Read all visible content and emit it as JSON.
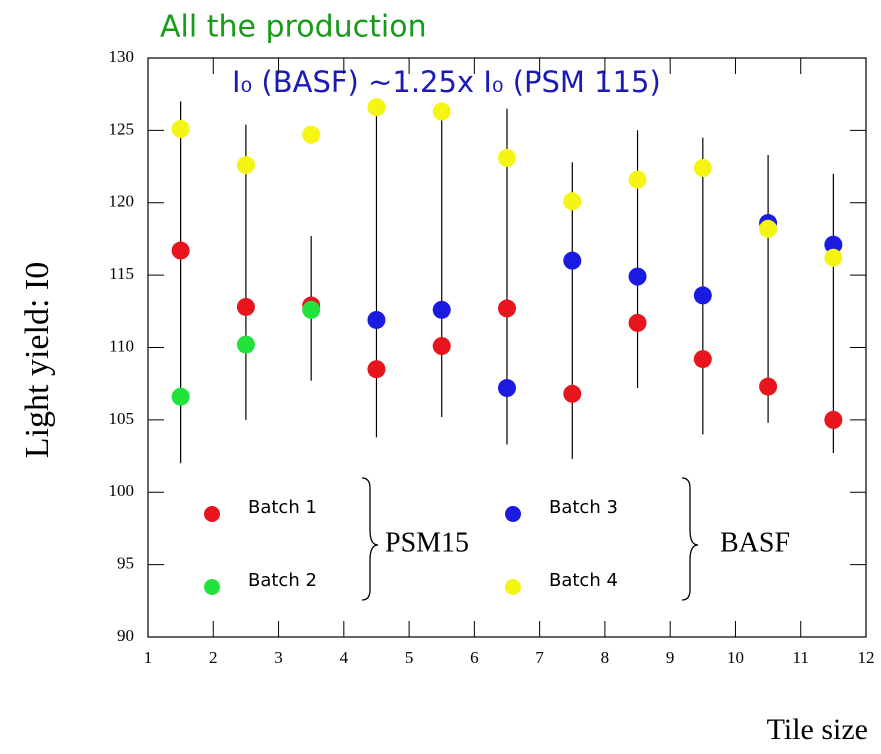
{
  "chart_data": {
    "type": "scatter",
    "title": "All the production",
    "annotation": "I₀ (BASF) ~1.25x I₀ (PSM 115)",
    "x_label": "Tile size",
    "y_label": "Light yield: I0",
    "xlim": [
      1,
      12
    ],
    "ylim": [
      90,
      130
    ],
    "xticks": [
      1,
      2,
      3,
      4,
      5,
      6,
      7,
      8,
      9,
      10,
      11,
      12
    ],
    "yticks": [
      90,
      95,
      100,
      105,
      110,
      115,
      120,
      125,
      130
    ],
    "legend_groups": [
      "PSM15",
      "BASF"
    ],
    "series": [
      {
        "name": "Batch 1",
        "color": "#e8141e",
        "x": [
          1.5,
          2.5,
          3.5,
          4.5,
          5.5,
          6.5,
          7.5,
          8.5,
          9.5,
          10.5,
          11.5
        ],
        "values": [
          116.7,
          112.8,
          112.9,
          108.5,
          110.1,
          112.7,
          106.8,
          111.7,
          109.2,
          107.3,
          105.0
        ]
      },
      {
        "name": "Batch 2",
        "color": "#22e33c",
        "x": [
          1.5,
          2.5,
          3.5
        ],
        "values": [
          106.6,
          110.2,
          112.6
        ]
      },
      {
        "name": "Batch 3",
        "color": "#1a1ae0",
        "x": [
          4.5,
          5.5,
          6.5,
          7.5,
          8.5,
          9.5,
          10.5,
          11.5
        ],
        "values": [
          111.9,
          112.6,
          107.2,
          116.0,
          114.9,
          113.6,
          118.6,
          117.1
        ]
      },
      {
        "name": "Batch 4",
        "color": "#f5f514",
        "x": [
          1.5,
          2.5,
          3.5,
          4.5,
          5.5,
          6.5,
          7.5,
          8.5,
          9.5,
          10.5,
          11.5
        ],
        "values": [
          125.1,
          122.6,
          124.7,
          126.6,
          126.3,
          123.1,
          120.1,
          121.6,
          122.4,
          118.2,
          116.2
        ]
      }
    ],
    "error_bars": {
      "x": [
        1.5,
        2.5,
        3.5,
        4.5,
        5.5,
        6.5,
        7.5,
        8.5,
        9.5,
        10.5,
        11.5
      ],
      "low": [
        102.0,
        105.0,
        107.7,
        103.8,
        105.2,
        103.3,
        102.3,
        107.2,
        104.0,
        104.8,
        102.7
      ],
      "high": [
        127.0,
        125.4,
        117.7,
        126.4,
        126.8,
        126.5,
        122.8,
        125.0,
        124.5,
        123.3,
        122.0
      ]
    }
  }
}
